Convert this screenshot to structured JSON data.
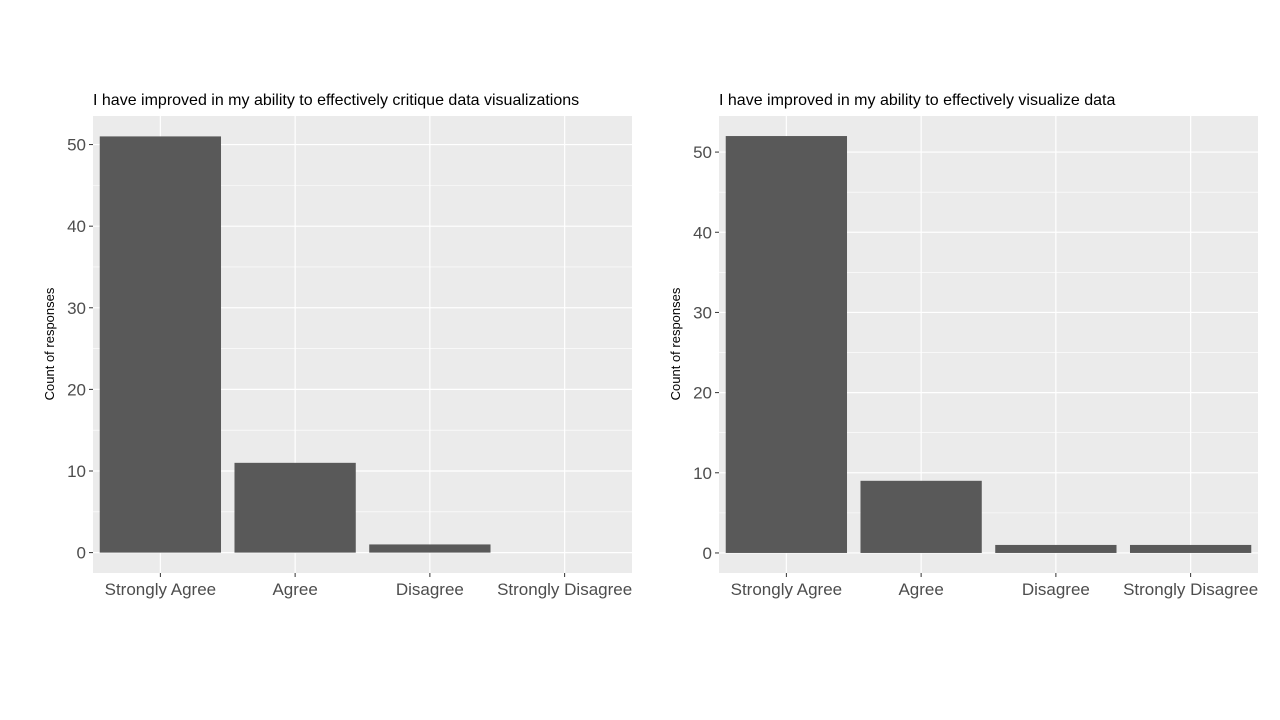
{
  "chart_data": [
    {
      "type": "bar",
      "title": "I have improved in my ability to effectively critique data visualizations",
      "ylabel": "Count of responses",
      "xlabel": "",
      "categories": [
        "Strongly Agree",
        "Agree",
        "Disagree",
        "Strongly Disagree"
      ],
      "values": [
        51,
        11,
        1,
        0
      ],
      "ylim": [
        -2.5,
        53.5
      ],
      "yticks": [
        0,
        10,
        20,
        30,
        40,
        50
      ],
      "ytick_labels": [
        "0",
        "10",
        "20",
        "30",
        "40",
        "50"
      ],
      "grid": true,
      "legend": "none",
      "bar_color": "#595959",
      "panel_color": "#ebebeb"
    },
    {
      "type": "bar",
      "title": "I have improved in my ability to effectively visualize data",
      "ylabel": "Count of responses",
      "xlabel": "",
      "categories": [
        "Strongly Agree",
        "Agree",
        "Disagree",
        "Strongly Disagree"
      ],
      "values": [
        52,
        9,
        1,
        1
      ],
      "ylim": [
        -2.5,
        54.5
      ],
      "yticks": [
        0,
        10,
        20,
        30,
        40,
        50
      ],
      "ytick_labels": [
        "0",
        "10",
        "20",
        "30",
        "40",
        "50"
      ],
      "grid": true,
      "legend": "none",
      "bar_color": "#595959",
      "panel_color": "#ebebeb"
    }
  ]
}
